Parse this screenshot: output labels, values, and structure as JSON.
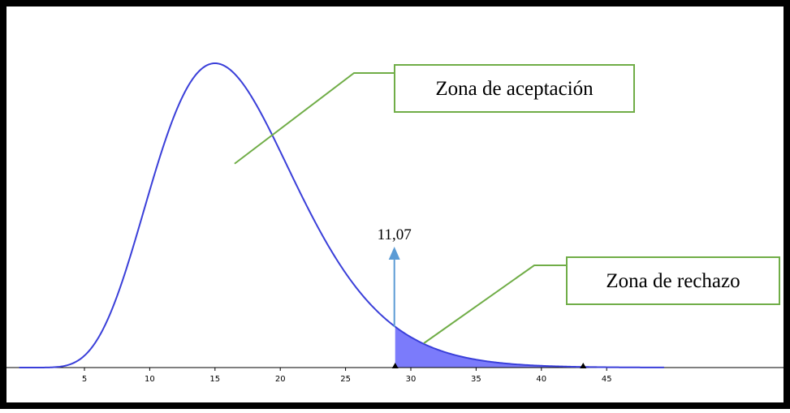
{
  "chart_data": {
    "type": "area",
    "title": "",
    "xlabel": "",
    "ylabel": "",
    "xlim": [
      0,
      49.5
    ],
    "x_ticks": [
      5,
      10,
      15,
      20,
      25,
      30,
      35,
      40,
      45
    ],
    "x_tick_labels": [
      "5",
      "10",
      "15",
      "20",
      "25",
      "30",
      "35",
      "40",
      "45"
    ],
    "curve": {
      "peak_x": 16,
      "points_x": [
        0,
        2,
        4,
        6,
        8,
        10,
        12,
        14,
        16,
        18,
        20,
        22,
        24,
        26,
        28,
        30,
        32,
        34,
        36,
        38,
        40,
        42,
        44,
        46,
        48
      ],
      "points_y": [
        0.0,
        0.0001,
        0.003,
        0.02,
        0.09,
        0.25,
        0.55,
        0.87,
        1.0,
        0.92,
        0.74,
        0.55,
        0.39,
        0.26,
        0.17,
        0.11,
        0.07,
        0.045,
        0.028,
        0.017,
        0.01,
        0.006,
        0.003,
        0.0015,
        0.0007
      ]
    },
    "critical_x": 28.8,
    "critical_label": "11,07",
    "rejection_from_x": 28.8,
    "marker_xs": [
      28.8,
      43.2
    ],
    "annotations": [
      {
        "text": "Zona de aceptación",
        "target_x": 16.5,
        "target_y": 0.67
      },
      {
        "text": "Zona de rechazo",
        "target_x": 31,
        "target_y": 0.08
      }
    ],
    "grid": false,
    "legend": "none"
  },
  "colors": {
    "curve": "#3a3fd9",
    "fill": "#7b7bfb",
    "arrow": "#5b9bd5",
    "callout_border": "#70ad47",
    "leader_line": "#70ad47",
    "frame": "#000000",
    "axis": "#000000",
    "marker": "#000000"
  }
}
